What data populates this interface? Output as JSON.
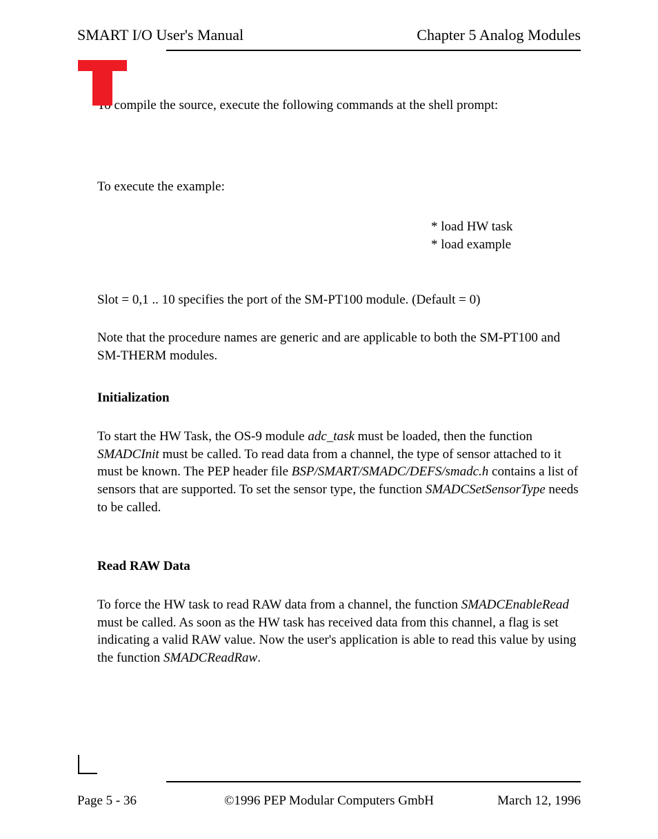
{
  "header": {
    "left": "SMART I/O User's Manual",
    "right": "Chapter 5  Analog Modules"
  },
  "logo": {
    "color": "#ed1c24"
  },
  "body": {
    "p1": "To compile the source, execute the following commands at the shell prompt:",
    "p2": "To execute the example:",
    "right_lines": {
      "l1": "* load HW task",
      "l2": "* load example"
    },
    "p3": "Slot = 0,1 .. 10 specifies the port of the SM-PT100 module. (Default = 0)",
    "p4": "Note that the procedure names are generic and are applicable to both the SM-PT100 and SM-THERM modules.",
    "h1": "Initialization",
    "p5_a": "To start the HW Task, the OS-9 module ",
    "p5_i1": "adc_task",
    "p5_b": " must be loaded, then the function ",
    "p5_i2": "SMADCInit",
    "p5_c": " must be called. To read data from a channel, the type of sensor attached to it must be known. The PEP header file ",
    "p5_i3": "BSP/SMART/SMADC/DEFS/smadc.h",
    "p5_d": " contains a list of sensors that are supported. To set the sensor type, the function ",
    "p5_i4": "SMADCSetSensorType",
    "p5_e": " needs to be called.",
    "h2": "Read RAW Data",
    "p6_a": "To force the HW task to read RAW data from a channel, the function ",
    "p6_i1": "SMADCEnableRead",
    "p6_b": " must be called. As soon as the HW task has received data from this channel, a flag is set indicating a valid RAW value. Now the user's application is able to read this value by using the function ",
    "p6_i2": "SMADCReadRaw",
    "p6_c": "."
  },
  "footer": {
    "page": "Page 5 - 36",
    "copyright": "©1996 PEP Modular Computers GmbH",
    "date": "March 12, 1996"
  }
}
